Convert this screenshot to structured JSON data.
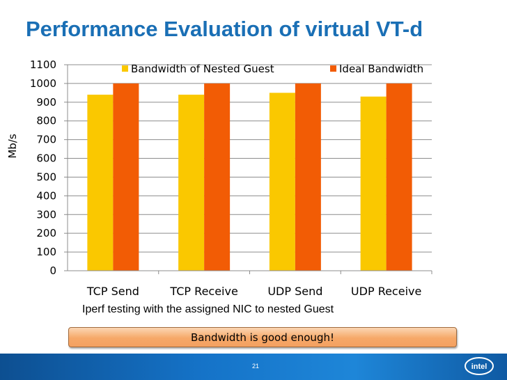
{
  "slide": {
    "title": "Performance Evaluation of virtual VT-d",
    "subcaption": "Iperf testing with the assigned NIC to nested Guest",
    "callout": "Bandwidth is good enough!",
    "page_number": "21",
    "logo_text": "intel"
  },
  "colors": {
    "title": "#1a6fb5",
    "series_nested": "#fac800",
    "series_ideal": "#f25c05",
    "gridline": "#8c8c8c"
  },
  "chart_data": {
    "type": "bar",
    "title": "",
    "xlabel": "",
    "ylabel": "Mb/s",
    "categories": [
      "TCP Send",
      "TCP Receive",
      "UDP Send",
      "UDP Receive"
    ],
    "series": [
      {
        "name": "Bandwidth of Nested Guest",
        "values": [
          940,
          940,
          950,
          930
        ]
      },
      {
        "name": "Ideal Bandwidth",
        "values": [
          1000,
          1000,
          1000,
          1000
        ]
      }
    ],
    "ylim": [
      0,
      1100
    ],
    "yticks": [
      0,
      100,
      200,
      300,
      400,
      500,
      600,
      700,
      800,
      900,
      1000,
      1100
    ],
    "grid": true,
    "legend": "top"
  }
}
